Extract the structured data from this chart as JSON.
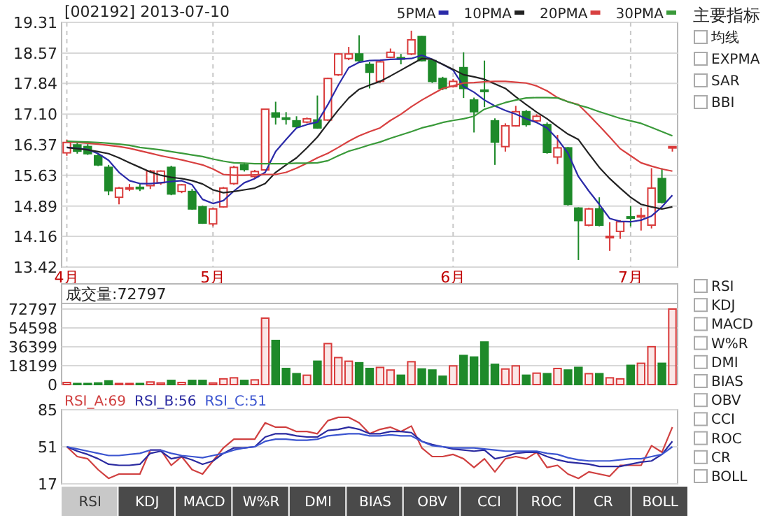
{
  "chart_data": [
    {
      "type": "candlestick",
      "title": "[002192] 2013-07-10",
      "categories": [
        "4月",
        null,
        null,
        null,
        null,
        null,
        null,
        null,
        null,
        null,
        null,
        null,
        null,
        null,
        "5月",
        null,
        null,
        null,
        null,
        null,
        null,
        null,
        null,
        null,
        null,
        null,
        null,
        null,
        null,
        null,
        null,
        null,
        null,
        null,
        null,
        null,
        null,
        "6月",
        null,
        null,
        null,
        null,
        null,
        null,
        null,
        null,
        null,
        null,
        null,
        null,
        null,
        null,
        null,
        null,
        "7月",
        null,
        null,
        null,
        null
      ],
      "ohlc": [
        [
          16.17,
          16.49,
          16.1,
          16.42
        ],
        [
          16.36,
          16.45,
          16.15,
          16.21
        ],
        [
          16.32,
          16.38,
          16.12,
          16.15
        ],
        [
          16.1,
          16.15,
          15.85,
          15.88
        ],
        [
          15.82,
          15.88,
          15.15,
          15.26
        ],
        [
          15.1,
          15.35,
          14.93,
          15.32
        ],
        [
          15.31,
          15.42,
          15.25,
          15.33
        ],
        [
          15.34,
          15.42,
          15.25,
          15.32
        ],
        [
          15.38,
          15.76,
          15.3,
          15.73
        ],
        [
          15.45,
          15.75,
          15.4,
          15.73
        ],
        [
          15.82,
          15.86,
          15.15,
          15.18
        ],
        [
          15.24,
          15.42,
          15.2,
          15.4
        ],
        [
          15.24,
          15.3,
          14.8,
          14.82
        ],
        [
          14.87,
          14.9,
          14.46,
          14.48
        ],
        [
          14.46,
          14.85,
          14.4,
          14.82
        ],
        [
          14.87,
          15.35,
          14.85,
          15.32
        ],
        [
          15.43,
          15.86,
          15.4,
          15.82
        ],
        [
          15.88,
          15.93,
          15.72,
          15.77
        ],
        [
          15.6,
          15.76,
          15.55,
          15.72
        ],
        [
          15.76,
          17.22,
          15.74,
          17.22
        ],
        [
          17.13,
          17.4,
          16.85,
          17.03
        ],
        [
          17.01,
          17.15,
          16.85,
          16.99
        ],
        [
          16.94,
          17.05,
          16.78,
          16.8
        ],
        [
          16.91,
          17.02,
          16.88,
          16.99
        ],
        [
          16.96,
          17.55,
          16.75,
          16.77
        ],
        [
          16.96,
          17.98,
          16.94,
          17.96
        ],
        [
          18.05,
          18.57,
          18.02,
          18.55
        ],
        [
          18.44,
          18.72,
          18.4,
          18.55
        ],
        [
          18.55,
          19.0,
          18.35,
          18.39
        ],
        [
          18.3,
          18.35,
          17.72,
          18.11
        ],
        [
          17.89,
          18.38,
          17.85,
          18.36
        ],
        [
          18.47,
          18.68,
          18.45,
          18.59
        ],
        [
          18.46,
          18.55,
          18.3,
          18.44
        ],
        [
          18.55,
          19.11,
          18.52,
          18.89
        ],
        [
          18.97,
          18.99,
          18.37,
          18.39
        ],
        [
          18.39,
          18.42,
          17.85,
          17.89
        ],
        [
          17.96,
          18.0,
          17.68,
          17.72
        ],
        [
          17.77,
          17.95,
          17.74,
          17.89
        ],
        [
          18.22,
          18.59,
          17.49,
          17.72
        ],
        [
          17.44,
          17.5,
          16.66,
          17.16
        ],
        [
          17.68,
          18.39,
          17.27,
          17.66
        ],
        [
          16.94,
          17.0,
          15.88,
          16.43
        ],
        [
          16.32,
          16.88,
          16.2,
          16.82
        ],
        [
          16.82,
          17.3,
          16.8,
          17.16
        ],
        [
          17.16,
          17.2,
          16.8,
          16.85
        ],
        [
          16.94,
          17.1,
          16.9,
          17.05
        ],
        [
          16.85,
          16.9,
          16.15,
          16.18
        ],
        [
          16.07,
          16.6,
          15.9,
          16.29
        ],
        [
          16.29,
          16.31,
          14.9,
          14.93
        ],
        [
          14.84,
          14.86,
          13.59,
          14.54
        ],
        [
          14.43,
          14.85,
          14.4,
          14.82
        ],
        [
          14.82,
          15.1,
          14.4,
          14.43
        ],
        [
          14.14,
          14.5,
          13.81,
          14.16
        ],
        [
          14.28,
          14.55,
          14.1,
          14.51
        ],
        [
          14.63,
          14.89,
          14.4,
          14.61
        ],
        [
          14.64,
          14.85,
          14.3,
          14.66
        ],
        [
          14.43,
          15.8,
          14.35,
          15.32
        ],
        [
          15.55,
          15.8,
          14.95,
          14.98
        ],
        [
          16.32,
          16.32,
          16.2,
          16.32
        ]
      ],
      "colors": [
        "#d93a3a",
        "#1e8a2a",
        "#1e8a2a",
        "#1e8a2a",
        "#1e8a2a",
        "#d93a3a",
        "#d93a3a",
        "#1e8a2a",
        "#d93a3a",
        "#d93a3a",
        "#1e8a2a",
        "#d93a3a",
        "#1e8a2a",
        "#1e8a2a",
        "#d93a3a",
        "#d93a3a",
        "#d93a3a",
        "#1e8a2a",
        "#d93a3a",
        "#d93a3a",
        "#1e8a2a",
        "#1e8a2a",
        "#1e8a2a",
        "#d93a3a",
        "#1e8a2a",
        "#d93a3a",
        "#d93a3a",
        "#d93a3a",
        "#1e8a2a",
        "#1e8a2a",
        "#d93a3a",
        "#d93a3a",
        "#1e8a2a",
        "#d93a3a",
        "#1e8a2a",
        "#1e8a2a",
        "#1e8a2a",
        "#d93a3a",
        "#1e8a2a",
        "#1e8a2a",
        "#1e8a2a",
        "#1e8a2a",
        "#d93a3a",
        "#d93a3a",
        "#1e8a2a",
        "#d93a3a",
        "#1e8a2a",
        "#d93a3a",
        "#1e8a2a",
        "#1e8a2a",
        "#d93a3a",
        "#1e8a2a",
        "#d93a3a",
        "#d93a3a",
        "#1e8a2a",
        "#d93a3a",
        "#d93a3a",
        "#1e8a2a",
        "#d93a3a"
      ],
      "series": [
        {
          "name": "5PMA",
          "type": "line",
          "color": "#2a2aa8",
          "values": [
            16.3,
            16.28,
            16.25,
            16.15,
            15.99,
            15.7,
            15.5,
            15.43,
            15.43,
            15.45,
            15.48,
            15.5,
            15.4,
            15.05,
            14.95,
            15.02,
            15.25,
            15.45,
            15.55,
            15.7,
            16.2,
            16.49,
            16.77,
            16.85,
            16.91,
            17.33,
            17.8,
            18.22,
            18.35,
            18.39,
            18.4,
            18.42,
            18.43,
            18.44,
            18.52,
            18.42,
            18.3,
            18.16,
            17.77,
            17.63,
            17.44,
            17.3,
            17.19,
            17.1,
            16.99,
            16.9,
            16.77,
            16.5,
            16.16,
            15.6,
            15.25,
            14.93,
            14.59,
            14.52,
            14.51,
            14.55,
            14.65,
            14.87,
            15.15
          ]
        },
        {
          "name": "10PMA",
          "type": "line",
          "color": "#222222",
          "values": [
            16.3,
            16.27,
            16.24,
            16.2,
            16.15,
            16.05,
            15.93,
            15.82,
            15.71,
            15.63,
            15.58,
            15.55,
            15.5,
            15.42,
            15.28,
            15.21,
            15.24,
            15.28,
            15.32,
            15.43,
            15.7,
            15.88,
            16.05,
            16.29,
            16.55,
            16.88,
            17.2,
            17.49,
            17.7,
            17.8,
            17.89,
            18.02,
            18.16,
            18.3,
            18.44,
            18.42,
            18.3,
            18.18,
            18.05,
            18.0,
            17.94,
            17.83,
            17.72,
            17.52,
            17.33,
            17.15,
            16.99,
            16.8,
            16.62,
            16.49,
            16.15,
            15.82,
            15.55,
            15.32,
            15.1,
            14.93,
            14.87,
            14.82,
            14.87
          ]
        },
        {
          "name": "20PMA",
          "type": "line",
          "color": "#d84040",
          "values": [
            16.43,
            16.42,
            16.4,
            16.38,
            16.35,
            16.32,
            16.28,
            16.22,
            16.16,
            16.1,
            16.05,
            16.0,
            15.94,
            15.88,
            15.78,
            15.65,
            15.63,
            15.63,
            15.64,
            15.65,
            15.65,
            15.7,
            15.8,
            15.92,
            16.05,
            16.16,
            16.3,
            16.45,
            16.58,
            16.68,
            16.77,
            16.95,
            17.1,
            17.28,
            17.44,
            17.58,
            17.72,
            17.78,
            17.85,
            17.86,
            17.88,
            17.89,
            17.89,
            17.87,
            17.85,
            17.78,
            17.66,
            17.5,
            17.4,
            17.33,
            17.08,
            16.82,
            16.55,
            16.27,
            16.1,
            15.93,
            15.85,
            15.78,
            15.73
          ]
        },
        {
          "name": "30PMA",
          "type": "line",
          "color": "#3a9a3a",
          "values": [
            16.45,
            16.44,
            16.43,
            16.42,
            16.4,
            16.38,
            16.35,
            16.3,
            16.27,
            16.24,
            16.2,
            16.16,
            16.12,
            16.08,
            16.02,
            15.97,
            15.93,
            15.92,
            15.91,
            15.91,
            15.91,
            15.91,
            15.92,
            15.92,
            15.93,
            15.98,
            16.1,
            16.21,
            16.28,
            16.36,
            16.43,
            16.52,
            16.6,
            16.68,
            16.77,
            16.83,
            16.9,
            16.95,
            16.99,
            17.05,
            17.22,
            17.3,
            17.38,
            17.44,
            17.49,
            17.5,
            17.5,
            17.49,
            17.4,
            17.32,
            17.25,
            17.16,
            17.08,
            17.0,
            16.94,
            16.88,
            16.78,
            16.68,
            16.58
          ]
        }
      ],
      "ylim": [
        13.42,
        19.31
      ],
      "yticks": [
        13.42,
        14.16,
        14.89,
        15.63,
        16.37,
        {
          "value": 17.1,
          "label": "17.10"
        },
        17.84,
        18.57,
        19.31
      ],
      "grid": true,
      "legend": "top right"
    },
    {
      "type": "bar",
      "title": "成交量:72797",
      "categories": [
        null,
        null,
        null,
        null,
        null,
        null,
        null,
        null,
        null,
        null,
        null,
        null,
        null,
        null,
        null,
        null,
        null,
        null,
        null,
        null,
        null,
        null,
        null,
        null,
        null,
        null,
        null,
        null,
        null,
        null,
        null,
        null,
        null,
        null,
        null,
        null,
        null,
        null,
        null,
        null,
        null,
        null,
        null,
        null,
        null,
        null,
        null,
        null,
        null,
        null,
        null,
        null,
        null,
        null,
        null,
        null,
        null,
        null,
        null
      ],
      "values": [
        2000,
        1000,
        1000,
        1500,
        3500,
        1000,
        1000,
        1000,
        2500,
        1500,
        4000,
        2000,
        4000,
        4000,
        1500,
        5500,
        6500,
        4000,
        4500,
        64000,
        42500,
        15500,
        10500,
        9000,
        22500,
        39500,
        26000,
        22500,
        21000,
        15500,
        16500,
        14000,
        9000,
        22000,
        15000,
        14000,
        8000,
        18000,
        28000,
        26500,
        41000,
        19500,
        15000,
        18000,
        9000,
        11000,
        10500,
        15500,
        14000,
        16500,
        10500,
        10500,
        6500,
        5500,
        18500,
        20500,
        36500,
        20500,
        72797
      ],
      "colors": [
        "#d93a3a",
        "#1e8a2a",
        "#1e8a2a",
        "#1e8a2a",
        "#1e8a2a",
        "#d93a3a",
        "#d93a3a",
        "#1e8a2a",
        "#d93a3a",
        "#d93a3a",
        "#1e8a2a",
        "#d93a3a",
        "#1e8a2a",
        "#1e8a2a",
        "#d93a3a",
        "#d93a3a",
        "#d93a3a",
        "#1e8a2a",
        "#d93a3a",
        "#d93a3a",
        "#1e8a2a",
        "#1e8a2a",
        "#1e8a2a",
        "#d93a3a",
        "#1e8a2a",
        "#d93a3a",
        "#d93a3a",
        "#d93a3a",
        "#1e8a2a",
        "#1e8a2a",
        "#d93a3a",
        "#d93a3a",
        "#1e8a2a",
        "#d93a3a",
        "#1e8a2a",
        "#1e8a2a",
        "#1e8a2a",
        "#d93a3a",
        "#1e8a2a",
        "#1e8a2a",
        "#1e8a2a",
        "#1e8a2a",
        "#d93a3a",
        "#d93a3a",
        "#1e8a2a",
        "#d93a3a",
        "#1e8a2a",
        "#d93a3a",
        "#1e8a2a",
        "#1e8a2a",
        "#d93a3a",
        "#1e8a2a",
        "#d93a3a",
        "#d93a3a",
        "#1e8a2a",
        "#d93a3a",
        "#d93a3a",
        "#1e8a2a",
        "#d93a3a"
      ],
      "ylim": [
        0,
        72797
      ],
      "yticks": [
        0,
        18199,
        36399,
        54598,
        72797
      ],
      "grid": "y"
    },
    {
      "type": "line",
      "categories": [
        null,
        null,
        null,
        null,
        null,
        null,
        null,
        null,
        null,
        null,
        null,
        null,
        null,
        null,
        null,
        null,
        null,
        null,
        null,
        null,
        null,
        null,
        null,
        null,
        null,
        null,
        null,
        null,
        null,
        null,
        null,
        null,
        null,
        null,
        null,
        null,
        null,
        null,
        null,
        null,
        null,
        null,
        null,
        null,
        null,
        null,
        null,
        null,
        null,
        null,
        null,
        null,
        null,
        null,
        null,
        null,
        null,
        null,
        null
      ],
      "series": [
        {
          "name": "RSI_A:69",
          "color": "#d04040",
          "values": [
            51,
            42,
            40,
            30,
            22,
            26,
            26,
            26,
            48,
            48,
            34,
            42,
            30,
            26,
            38,
            50,
            58,
            58,
            58,
            73,
            69,
            69,
            65,
            65,
            63,
            75,
            78,
            78,
            73,
            63,
            67,
            69,
            65,
            70,
            50,
            42,
            42,
            44,
            40,
            32,
            40,
            28,
            40,
            42,
            40,
            46,
            32,
            34,
            26,
            22,
            28,
            26,
            24,
            34,
            34,
            34,
            52,
            46,
            69
          ]
        },
        {
          "name": "RSI_B:56",
          "color": "#2a2aa0",
          "values": [
            51,
            47,
            44,
            40,
            35,
            34,
            34,
            35,
            45,
            47,
            40,
            42,
            39,
            35,
            38,
            45,
            50,
            50,
            51,
            60,
            63,
            63,
            61,
            60,
            60,
            66,
            67,
            69,
            67,
            63,
            63,
            65,
            65,
            64,
            56,
            53,
            51,
            49,
            48,
            47,
            48,
            40,
            42,
            45,
            46,
            46,
            42,
            39,
            37,
            36,
            35,
            33,
            33,
            33,
            35,
            37,
            38,
            44,
            56
          ]
        },
        {
          "name": "RSI_C:51",
          "color": "#3c55d0",
          "values": [
            51,
            49,
            47,
            45,
            43,
            43,
            44,
            45,
            48,
            48,
            45,
            43,
            42,
            41,
            43,
            45,
            48,
            50,
            51,
            56,
            58,
            58,
            57,
            57,
            58,
            61,
            62,
            63,
            63,
            61,
            61,
            62,
            61,
            61,
            56,
            52,
            51,
            50,
            50,
            50,
            49,
            48,
            47,
            47,
            47,
            47,
            45,
            44,
            41,
            39,
            38,
            38,
            38,
            39,
            40,
            40,
            42,
            44,
            51
          ]
        }
      ],
      "ylim": [
        17,
        85
      ],
      "yticks": [
        17,
        51,
        85
      ],
      "grid": "y",
      "legend": "top left"
    },
    {
      "type": "other",
      "categories": [
        "RSI",
        "KDJ",
        "MACD",
        "W%R",
        "DMI",
        "BIAS",
        "OBV",
        "CCI",
        "ROC",
        "CR",
        "BOLL"
      ],
      "annotations": [
        "主要指标",
        "均线",
        "EXPMA",
        "SAR",
        "BBI",
        "RSI",
        "KDJ",
        "MACD",
        "W%R",
        "DMI",
        "BIAS",
        "OBV",
        "CCI",
        "ROC",
        "CR",
        "BOLL"
      ]
    }
  ]
}
